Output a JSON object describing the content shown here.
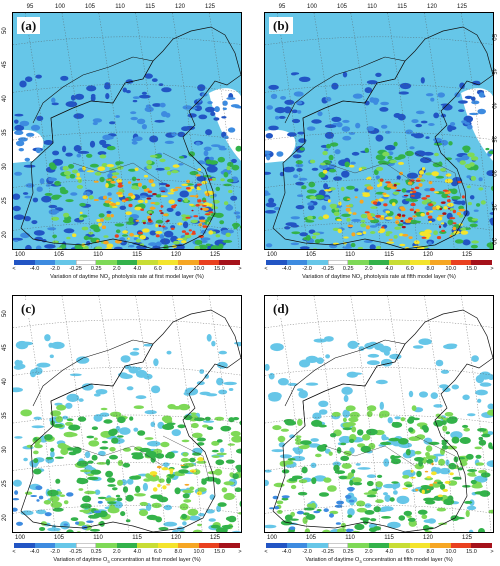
{
  "figure": {
    "panels": [
      {
        "label": "(a)",
        "caption_pre": "Variation of daytime NO",
        "caption_sub": "2",
        "caption_post": " photolysis rate at first model layer (%)",
        "theme": "no2"
      },
      {
        "label": "(b)",
        "caption_pre": "Variation of daytime NO",
        "caption_sub": "2",
        "caption_post": " photolysis rate at fifth model layer (%)",
        "theme": "no2"
      },
      {
        "label": "(c)",
        "caption_pre": "Variation of daytime O",
        "caption_sub": "3",
        "caption_post": " concentration at first model layer (%)",
        "theme": "o3"
      },
      {
        "label": "(d)",
        "caption_pre": "Variation of daytime O",
        "caption_sub": "3",
        "caption_post": " concentration at fifth model layer (%)",
        "theme": "o3"
      }
    ],
    "top_lon_ticks": [
      "95",
      "100",
      "105",
      "110",
      "115",
      "120",
      "125"
    ],
    "bottom_lon_ticks": [
      "100",
      "105",
      "110",
      "115",
      "120",
      "125"
    ],
    "lat_ticks": [
      "20",
      "25",
      "30",
      "35",
      "40",
      "45",
      "50"
    ],
    "colorbar": {
      "labels": [
        "<",
        "-4.0",
        "-2.0",
        "-0.25",
        "0.25",
        "2.0",
        "4.0",
        "6.0",
        "8.0",
        "10.0",
        "15.0",
        ">"
      ],
      "colors": [
        "#2255c4",
        "#3d8be0",
        "#66c6e8",
        "#ffffff",
        "#7ed957",
        "#33b24a",
        "#c8dd34",
        "#f4e42c",
        "#f6a623",
        "#e9401f",
        "#a5121b"
      ]
    },
    "colors": {
      "light_blue": "#66c6e8",
      "mid_blue": "#3d8be0",
      "dark_blue": "#2255c4",
      "light_green": "#7ed957",
      "green": "#33b24a",
      "yellow": "#f4e42c",
      "orange": "#f6a623",
      "red": "#e9401f",
      "dark_red": "#a5121b",
      "white": "#ffffff"
    }
  }
}
